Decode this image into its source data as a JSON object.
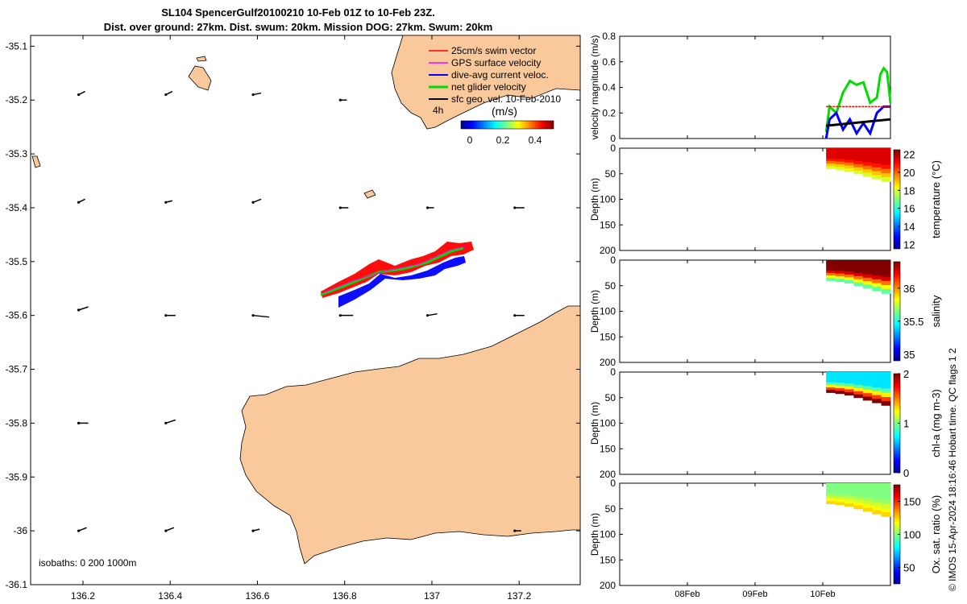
{
  "title_line1": "SL104 SpencerGulf20100210 10-Feb 01Z to 10-Feb 23Z.",
  "title_line2": "Dist. over ground: 27km. Dist. swum: 20km. Mission DOG: 27km. Swum: 20km",
  "colors": {
    "land": "#f9c89b",
    "swim": "#ff0000",
    "gps": "#ff00ff",
    "current": "#0000ff",
    "net": "#00dd00",
    "geo": "#000000"
  },
  "chart_data": [
    {
      "type": "map",
      "xlim": [
        136.08,
        137.34
      ],
      "ylim": [
        -36.1,
        -35.08
      ],
      "x_ticks": [
        "136.2",
        "136.4",
        "136.6",
        "136.8",
        "137",
        "137.2"
      ],
      "x_tick_values": [
        136.2,
        136.4,
        136.6,
        136.8,
        137.0,
        137.2
      ],
      "y_ticks": [
        "-35.1",
        "-35.2",
        "-35.3",
        "-35.4",
        "-35.5",
        "-35.6",
        "-35.7",
        "-35.8",
        "-35.9",
        "-36",
        "-36.1"
      ],
      "y_tick_values": [
        -35.1,
        -35.2,
        -35.3,
        -35.4,
        -35.5,
        -35.6,
        -35.7,
        -35.8,
        -35.9,
        -36.0,
        -36.1
      ],
      "legend": [
        {
          "label": "25cm/s swim vector",
          "color": "#ff0000"
        },
        {
          "label": "GPS surface velocity",
          "color": "#ff00ff"
        },
        {
          "label": "dive-avg current veloc.",
          "color": "#0000ff"
        },
        {
          "label": "net glider velocity",
          "color": "#00dd00"
        },
        {
          "label": "sfc geo. vel. 10-Feb-2010",
          "color": "#000000"
        }
      ],
      "legend_extra": "4h",
      "colorbar_label": "(m/s)",
      "colorbar_ticks": [
        "0",
        "0.2",
        "0.4"
      ],
      "colorbar_range": [
        0,
        0.5
      ],
      "isobaths_label": "isobaths: 0   200  1000m",
      "geo_vectors": [
        {
          "lon": 136.19,
          "lat": -35.19,
          "u": 0.02,
          "v": 0.01
        },
        {
          "lon": 136.39,
          "lat": -35.19,
          "u": 0.02,
          "v": 0.01
        },
        {
          "lon": 136.59,
          "lat": -35.19,
          "u": 0.025,
          "v": 0.005
        },
        {
          "lon": 136.79,
          "lat": -35.2,
          "u": 0.02,
          "v": 0.0
        },
        {
          "lon": 136.19,
          "lat": -35.39,
          "u": 0.02,
          "v": 0.01
        },
        {
          "lon": 136.39,
          "lat": -35.39,
          "u": 0.02,
          "v": 0.005
        },
        {
          "lon": 136.59,
          "lat": -35.39,
          "u": 0.025,
          "v": 0.01
        },
        {
          "lon": 136.79,
          "lat": -35.4,
          "u": 0.025,
          "v": 0.0
        },
        {
          "lon": 136.99,
          "lat": -35.4,
          "u": 0.02,
          "v": 0.0
        },
        {
          "lon": 137.19,
          "lat": -35.4,
          "u": 0.03,
          "v": 0.0
        },
        {
          "lon": 136.19,
          "lat": -35.59,
          "u": 0.03,
          "v": 0.01
        },
        {
          "lon": 136.39,
          "lat": -35.6,
          "u": 0.03,
          "v": 0.0
        },
        {
          "lon": 136.59,
          "lat": -35.6,
          "u": 0.05,
          "v": -0.005
        },
        {
          "lon": 136.79,
          "lat": -35.6,
          "u": 0.04,
          "v": 0.0
        },
        {
          "lon": 136.99,
          "lat": -35.6,
          "u": 0.03,
          "v": 0.005
        },
        {
          "lon": 137.19,
          "lat": -35.6,
          "u": 0.03,
          "v": 0.0
        },
        {
          "lon": 136.19,
          "lat": -35.8,
          "u": 0.03,
          "v": 0.0
        },
        {
          "lon": 136.39,
          "lat": -35.8,
          "u": 0.03,
          "v": 0.01
        },
        {
          "lon": 136.19,
          "lat": -36.0,
          "u": 0.025,
          "v": 0.01
        },
        {
          "lon": 136.39,
          "lat": -36.0,
          "u": 0.025,
          "v": 0.01
        },
        {
          "lon": 136.59,
          "lat": -36.0,
          "u": 0.02,
          "v": 0.005
        },
        {
          "lon": 137.19,
          "lat": -36.0,
          "u": 0.02,
          "v": 0.0
        }
      ],
      "track": [
        {
          "lon": 136.75,
          "lat": -35.56
        },
        {
          "lon": 136.82,
          "lat": -35.54
        },
        {
          "lon": 136.88,
          "lat": -35.525
        },
        {
          "lon": 136.94,
          "lat": -35.52
        },
        {
          "lon": 137.0,
          "lat": -35.51
        },
        {
          "lon": 137.05,
          "lat": -35.49
        },
        {
          "lon": 137.08,
          "lat": -35.48
        }
      ]
    },
    {
      "type": "line",
      "ylabel": "velocity magnitude (m/s)",
      "ylim": [
        0,
        0.8
      ],
      "y_ticks": [
        "0",
        "0.2",
        "0.4",
        "0.6",
        "0.8"
      ],
      "y_tick_values": [
        0,
        0.2,
        0.4,
        0.6,
        0.8
      ],
      "xlim": [
        7.0,
        11.0
      ],
      "series": [
        {
          "color": "#00dd00",
          "x": [
            10.05,
            10.1,
            10.2,
            10.3,
            10.4,
            10.5,
            10.6,
            10.7,
            10.8,
            10.85,
            10.9,
            10.95,
            11.0
          ],
          "y": [
            0.05,
            0.25,
            0.2,
            0.36,
            0.45,
            0.42,
            0.44,
            0.28,
            0.32,
            0.5,
            0.55,
            0.52,
            0.28
          ]
        },
        {
          "color": "#0000ff",
          "x": [
            10.05,
            10.1,
            10.2,
            10.3,
            10.4,
            10.5,
            10.6,
            10.7,
            10.8,
            10.9,
            11.0
          ],
          "y": [
            0.0,
            0.15,
            0.2,
            0.07,
            0.15,
            0.04,
            0.12,
            0.04,
            0.2,
            0.25,
            0.25
          ]
        },
        {
          "color": "#ff0000",
          "x": [
            10.05,
            11.0
          ],
          "y": [
            0.25,
            0.25
          ]
        },
        {
          "color": "#000000",
          "x": [
            10.05,
            11.0
          ],
          "y": [
            0.1,
            0.15
          ]
        }
      ]
    },
    {
      "type": "heatmap",
      "ylabel": "Depth (m)",
      "ylim": [
        0,
        200
      ],
      "y_ticks": [
        "0",
        "50",
        "100",
        "150",
        "200"
      ],
      "colorbar_label": "temperature (°C)",
      "colorbar_ticks": [
        "12",
        "14",
        "16",
        "18",
        "20",
        "22"
      ],
      "colorbar_range": [
        11.5,
        22.5
      ],
      "surface_value": 21.5,
      "deep_value": 18.0,
      "max_depth": [
        40,
        42,
        45,
        50,
        55,
        60,
        65
      ]
    },
    {
      "type": "heatmap",
      "ylabel": "Depth (m)",
      "ylim": [
        0,
        200
      ],
      "y_ticks": [
        "0",
        "50",
        "100",
        "150",
        "200"
      ],
      "colorbar_label": "salinity",
      "colorbar_ticks": [
        "35",
        "35.5",
        "36"
      ],
      "colorbar_range": [
        34.9,
        36.4
      ],
      "surface_value": 36.4,
      "deep_value": 35.6,
      "max_depth": [
        40,
        42,
        45,
        50,
        55,
        60,
        65
      ]
    },
    {
      "type": "heatmap",
      "ylabel": "Depth (m)",
      "ylim": [
        0,
        200
      ],
      "y_ticks": [
        "0",
        "50",
        "100",
        "150",
        "200"
      ],
      "colorbar_label": "chl-a (mg m-3)",
      "colorbar_ticks": [
        "0",
        "1",
        "2"
      ],
      "colorbar_range": [
        0,
        2
      ],
      "surface_value": 0.7,
      "deep_value": 2.0,
      "max_depth": [
        40,
        42,
        45,
        50,
        55,
        60,
        65
      ]
    },
    {
      "type": "heatmap",
      "ylabel": "Depth (m)",
      "ylim": [
        0,
        200
      ],
      "y_ticks": [
        "0",
        "50",
        "100",
        "150",
        "200"
      ],
      "x_ticks": [
        "08Feb",
        "09Feb",
        "10Feb"
      ],
      "x_tick_values": [
        8,
        9,
        10
      ],
      "colorbar_label": "Ox. sat. ratio (%)",
      "colorbar_ticks": [
        "50",
        "100",
        "150"
      ],
      "colorbar_range": [
        25,
        175
      ],
      "surface_value": 100,
      "deep_value": 125,
      "max_depth": [
        40,
        42,
        45,
        50,
        55,
        60,
        65
      ]
    }
  ],
  "side_note": "© IMOS 15-Apr-2024 18:16:46 Hobart time. QC flags 1  2"
}
